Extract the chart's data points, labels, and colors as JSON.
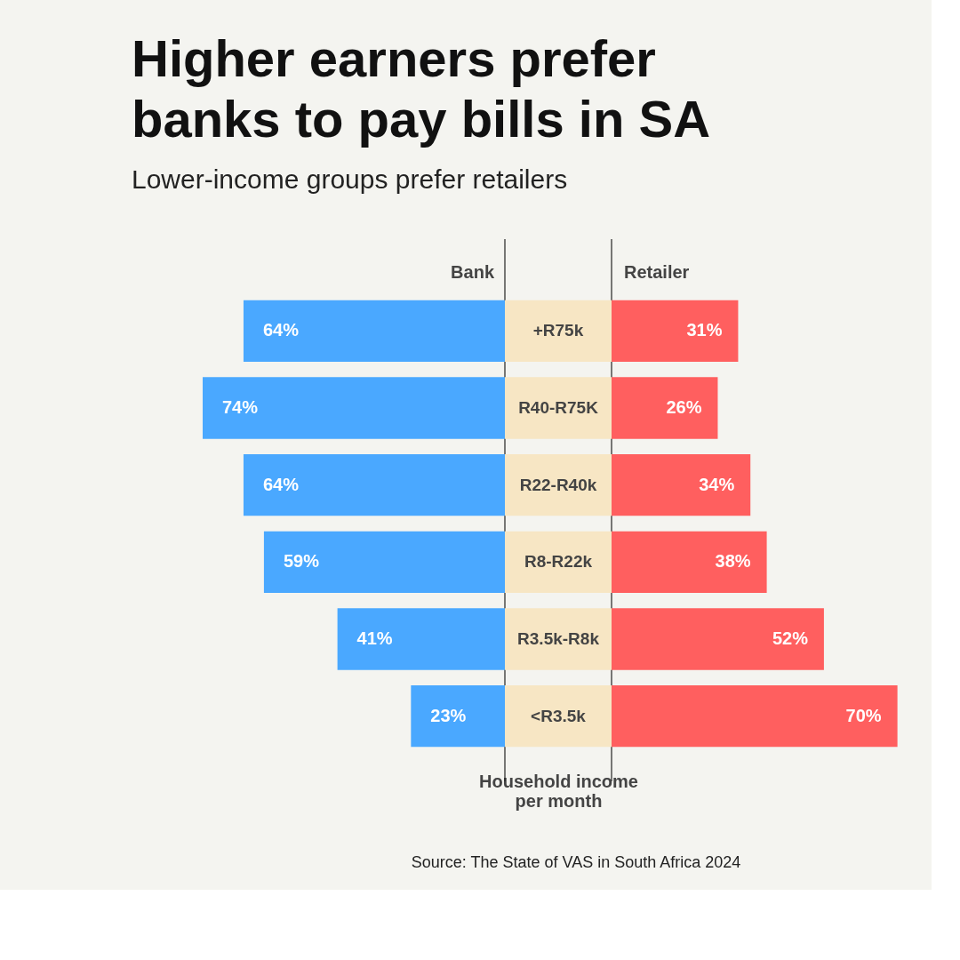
{
  "chart_data": [
    {
      "type": "bar",
      "orientation": "horizontal",
      "title": "Higher earners prefer banks to pay bills in SA",
      "subtitle": "Lower-income groups prefer retailers",
      "ylabel": "Household income per month",
      "categories": [
        "+R75k",
        "R40-R75K",
        "R22-R40k",
        "R8-R22k",
        "R3.5k-R8k",
        "<R3.5k"
      ],
      "series": [
        {
          "name": "Bank",
          "color": "#4aa8ff",
          "values": [
            64,
            74,
            64,
            59,
            41,
            23
          ],
          "value_labels": [
            "64%",
            "74%",
            "64%",
            "59%",
            "41%",
            "23%"
          ]
        }
      ],
      "grid": false,
      "annotations": [
        "Source: The State of VAS in South Africa 2024"
      ]
    },
    {
      "type": "bar",
      "orientation": "horizontal",
      "tick_labels": false,
      "categories": [
        null,
        null,
        null,
        null,
        null,
        null
      ],
      "series": [
        {
          "name": "Retailer",
          "color": "#ff5f5f",
          "values": [
            31,
            26,
            34,
            38,
            52,
            70
          ],
          "value_labels": [
            "31%",
            "26%",
            "34%",
            "38%",
            "52%",
            "70%"
          ]
        }
      ],
      "grid": false
    }
  ]
}
